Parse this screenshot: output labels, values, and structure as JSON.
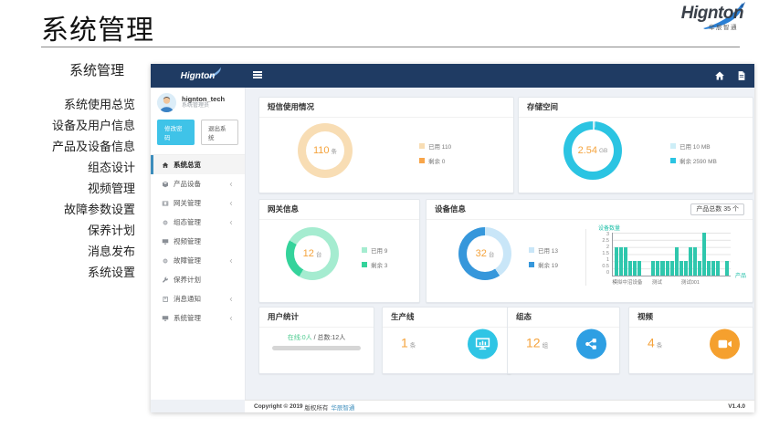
{
  "page": {
    "title": "系统管理"
  },
  "brand": {
    "name": "Hignton",
    "subtitle": "华辰智通"
  },
  "outer_menu": {
    "heading": "系统管理",
    "items": [
      "系统使用总览",
      "设备及用户信息",
      "产品及设备信息",
      "组态设计",
      "视频管理",
      "故障参数设置",
      "保养计划",
      "消息发布",
      "系统设置"
    ]
  },
  "sidebar": {
    "user": {
      "name": "hignton_tech",
      "role": "系统管理员"
    },
    "buttons": {
      "change_password": "修改密码",
      "logout": "退出系统"
    },
    "menu": [
      {
        "label": "系统总览"
      },
      {
        "label": "产品设备"
      },
      {
        "label": "网关管理"
      },
      {
        "label": "组态管理"
      },
      {
        "label": "视频管理"
      },
      {
        "label": "故障管理"
      },
      {
        "label": "保养计划"
      },
      {
        "label": "消息通知"
      },
      {
        "label": "系统管理"
      }
    ]
  },
  "cards": {
    "sms": {
      "title": "短信使用情况",
      "value": "110",
      "unit": "条",
      "donut": {
        "from": 0,
        "segments": [
          {
            "label": "已用 110",
            "value": 110,
            "color": "#f8ddb4"
          },
          {
            "label": "剩余 0",
            "value": 0,
            "color": "#f8a54a"
          }
        ]
      }
    },
    "storage": {
      "title": "存储空间",
      "value": "2.54",
      "unit": "GB",
      "donut": {
        "from": 0,
        "segments": [
          {
            "label": "已用 10 MB",
            "value": 10,
            "color": "#cdeef7"
          },
          {
            "label": "剩余 2590 MB",
            "value": 2590,
            "color": "#2bc4e2"
          }
        ]
      }
    },
    "gateway": {
      "title": "网关信息",
      "value": "12",
      "unit": "台",
      "donut": {
        "from": -60,
        "segments": [
          {
            "label": "已用 9",
            "value": 9,
            "color": "#a5ecd0"
          },
          {
            "label": "剩余 3",
            "value": 3,
            "color": "#34d39b"
          }
        ]
      }
    },
    "device": {
      "title": "设备信息",
      "badge": "产品总数 35 个",
      "value": "32",
      "unit": "台",
      "donut": {
        "from": 0,
        "segments": [
          {
            "label": "已用 13",
            "value": 13,
            "color": "#c9e6f8"
          },
          {
            "label": "剩余 19",
            "value": 19,
            "color": "#3697db"
          }
        ]
      },
      "chart": {
        "type": "bar",
        "title": "设备数量",
        "xlabel": "产品",
        "ymax": 3,
        "yticks": [
          "3",
          "2.5",
          "2",
          "1.5",
          "1",
          "0.5",
          "0"
        ],
        "values": [
          2,
          2,
          2,
          1,
          1,
          1,
          0,
          0,
          1,
          1,
          1,
          1,
          1,
          2,
          1,
          1,
          2,
          2,
          1,
          3,
          1,
          1,
          1,
          0,
          1
        ],
        "bar_color": "#2fc7ad",
        "x_tick_labels": [
          {
            "text": "模拟中沼设备",
            "pos": 0.13
          },
          {
            "text": "测试",
            "pos": 0.38
          },
          {
            "text": "测试001",
            "pos": 0.66
          }
        ]
      }
    },
    "users": {
      "title": "用户统计",
      "online_label": "在线:0人",
      "sep": " / ",
      "total_label": "总数:12人"
    },
    "production": {
      "title": "生产线",
      "value": "1",
      "unit": "条",
      "icon_color": "#2fc5e5"
    },
    "config": {
      "title": "组态",
      "value": "12",
      "unit": "组",
      "icon_color": "#2e9fe3"
    },
    "video": {
      "title": "视频",
      "value": "4",
      "unit": "条",
      "icon_color": "#f5a02e"
    }
  },
  "footer": {
    "copyright_bold": "Copyright © 2019",
    "copyright_text": "版权所有",
    "company": "华辰智通",
    "version": "V1.4.0"
  }
}
